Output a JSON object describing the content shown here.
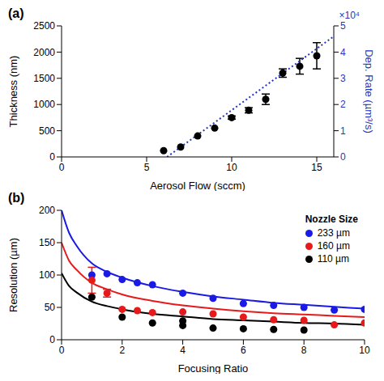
{
  "chart_data": [
    {
      "type": "scatter",
      "title": "(a)",
      "x_label": "Aerosol Flow (sccm)",
      "y_label": "Thickness (nm)",
      "y2_label": "Dep. Rate (µm³/s)",
      "y2_multiplier": "×10⁴",
      "xlim": [
        0,
        16
      ],
      "xticks": [
        0,
        5,
        10,
        15
      ],
      "ylim": [
        0,
        2500
      ],
      "yticks": [
        0,
        500,
        1000,
        1500,
        2000,
        2500
      ],
      "y2lim": [
        0,
        5
      ],
      "y2ticks": [
        0,
        1,
        2,
        3,
        4,
        5
      ],
      "grid": false,
      "series": [
        {
          "type": "scatter",
          "color": "#000000",
          "marker": "circle",
          "x": [
            6,
            7,
            8,
            9,
            10,
            11,
            12,
            13,
            14,
            15
          ],
          "values": [
            120,
            190,
            400,
            550,
            750,
            890,
            1100,
            1600,
            1730,
            1930
          ],
          "errors": [
            null,
            null,
            null,
            null,
            30,
            50,
            100,
            80,
            150,
            250
          ]
        },
        {
          "type": "line",
          "axis": "y2",
          "color": "#1f35c4",
          "line_style": "dotted",
          "x": [
            6.2,
            16
          ],
          "values": [
            0,
            4.6
          ]
        }
      ]
    },
    {
      "type": "scatter",
      "title": "(b)",
      "x_label": "Focusing Ratio",
      "y_label": "Resolution (µm)",
      "legend": "upper right",
      "legend_title": "Nozzle Size",
      "xlim": [
        0,
        10
      ],
      "xticks": [
        0,
        2,
        4,
        6,
        8,
        10
      ],
      "ylim": [
        0,
        200
      ],
      "yticks": [
        0,
        50,
        100,
        150,
        200
      ],
      "grid": false,
      "series": [
        {
          "type": "scatter",
          "name": "233 µm",
          "color": "#1a1ae6",
          "marker": "circle",
          "x": [
            1,
            1.5,
            2,
            2.5,
            3,
            4,
            5,
            6,
            7,
            8,
            9,
            10
          ],
          "values": [
            100,
            102,
            93,
            88,
            85,
            72,
            64,
            56,
            53,
            50,
            46,
            47
          ]
        },
        {
          "type": "scatter",
          "name": "160 µm",
          "color": "#e61a1a",
          "marker": "circle",
          "x": [
            1,
            1.5,
            2,
            2.5,
            3,
            4,
            5,
            6,
            7,
            8,
            9,
            10
          ],
          "values": [
            92,
            72,
            47,
            45,
            42,
            43,
            40,
            35,
            31,
            30,
            23,
            26
          ],
          "errors": [
            20,
            6,
            null,
            null,
            null,
            null,
            null,
            null,
            null,
            null,
            null,
            null
          ]
        },
        {
          "type": "scatter",
          "name": "110 µm",
          "color": "#000000",
          "marker": "circle",
          "x": [
            1,
            2,
            3,
            4,
            4,
            5,
            6,
            7,
            8
          ],
          "values": [
            66,
            35,
            26,
            29,
            22,
            18,
            17,
            16,
            15
          ]
        },
        {
          "type": "line",
          "color": "#1a1ae6",
          "line_style": "solid",
          "x": [
            0,
            0.25,
            0.5,
            1,
            1.5,
            2,
            3,
            4,
            5,
            6,
            7,
            8,
            9,
            10
          ],
          "values": [
            200,
            165,
            145,
            118,
            105,
            96,
            83,
            74,
            67,
            62,
            57,
            54,
            51,
            48
          ]
        },
        {
          "type": "line",
          "color": "#e61a1a",
          "line_style": "solid",
          "x": [
            0,
            0.25,
            0.5,
            1,
            1.5,
            2,
            3,
            4,
            5,
            6,
            7,
            8,
            9,
            10
          ],
          "values": [
            150,
            122,
            108,
            88,
            78,
            70,
            60,
            53,
            48,
            44,
            41,
            39,
            37,
            35
          ]
        },
        {
          "type": "line",
          "color": "#000000",
          "line_style": "solid",
          "x": [
            0,
            0.25,
            0.5,
            1,
            1.5,
            2,
            3,
            4,
            5,
            6,
            7,
            8,
            9,
            10
          ],
          "values": [
            103,
            83,
            73,
            59,
            52,
            47,
            40,
            36,
            32,
            30,
            28,
            26,
            25,
            23
          ]
        }
      ]
    }
  ]
}
